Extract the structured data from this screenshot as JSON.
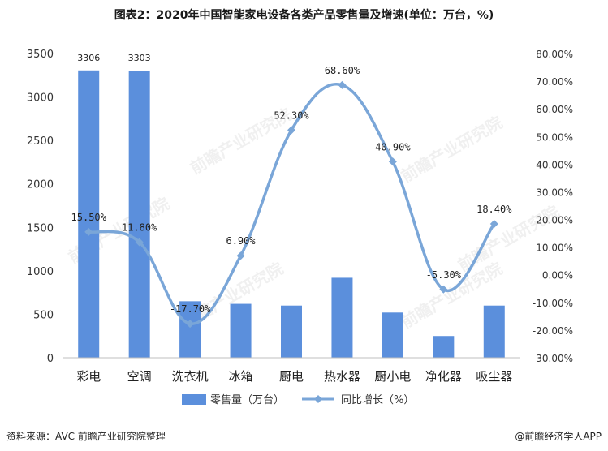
{
  "title": "图表2：2020年中国智能家电设备各类产品零售量及增速(单位：万台，%)",
  "source": "资料来源：AVC 前瞻产业研究院整理",
  "credit": "@前瞻经济学人APP",
  "watermark": "前瞻产业研究院",
  "colors": {
    "bar": "#5b8fdc",
    "line": "#7aa6d8",
    "axis": "#bfbfbf"
  },
  "chart_data": {
    "type": "bar",
    "categories": [
      "彩电",
      "空调",
      "洗衣机",
      "冰箱",
      "厨电",
      "热水器",
      "厨小电",
      "净化器",
      "吸尘器"
    ],
    "series": [
      {
        "name": "零售量（万台）",
        "type": "bar",
        "axis": "left",
        "values": [
          3306,
          3303,
          650,
          620,
          600,
          920,
          520,
          250,
          600
        ]
      },
      {
        "name": "同比增长（%）",
        "type": "line",
        "axis": "right",
        "values": [
          15.5,
          11.8,
          -17.7,
          6.9,
          52.3,
          68.6,
          40.9,
          -5.3,
          18.4
        ]
      }
    ],
    "bar_labels": [
      "3306",
      "3303"
    ],
    "line_labels": [
      "15.50%",
      "11.80%",
      "-17.70%",
      "6.90%",
      "52.30%",
      "68.60%",
      "40.90%",
      "-5.30%",
      "18.40%"
    ],
    "y_left": {
      "min": 0,
      "max": 3500,
      "step": 500,
      "ticks": [
        "0",
        "500",
        "1000",
        "1500",
        "2000",
        "2500",
        "3000",
        "3500"
      ]
    },
    "y_right": {
      "min": -30,
      "max": 80,
      "step": 10,
      "ticks": [
        "-30.00%",
        "-20.00%",
        "-10.00%",
        "0.00%",
        "10.00%",
        "20.00%",
        "30.00%",
        "40.00%",
        "50.00%",
        "60.00%",
        "70.00%",
        "80.00%"
      ]
    },
    "legend": {
      "position": "bottom",
      "bar_label": "零售量（万台）",
      "line_label": "同比增长（%）"
    },
    "grid": false
  }
}
